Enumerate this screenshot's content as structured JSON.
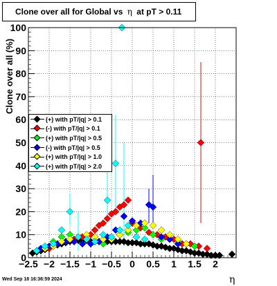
{
  "title_prefix": "Clone  over all for Global vs",
  "title_symbol": "η",
  "title_suffix": "at pT > 0.11",
  "ylabel": "Clone  over all (%)",
  "xlabel": "η",
  "timestamp": "Wed Sep 18 16:36:59 2024",
  "chart_data": {
    "type": "scatter",
    "title": "Clone  over all for Global vs η at pT > 0.11",
    "xlabel": "η",
    "ylabel": "Clone  over all (%)",
    "xlim": [
      -2.5,
      2.5
    ],
    "ylim": [
      0,
      100
    ],
    "grid": true,
    "legend_position": "left-middle",
    "xticks": [
      "-2.5",
      "-2",
      "-1.5",
      "-1",
      "-0.5",
      "0",
      "0.5",
      "1",
      "1.5",
      "2"
    ],
    "yticks": [
      "0",
      "10",
      "20",
      "30",
      "40",
      "50",
      "60",
      "70",
      "80",
      "90",
      "100"
    ],
    "series": [
      {
        "name": "(+) with pT/|q| > 0.1",
        "color": "#000000",
        "points": [
          [
            -2.4,
            2
          ],
          [
            -2.3,
            2.5
          ],
          [
            -2.2,
            3
          ],
          [
            -2.1,
            3.5
          ],
          [
            -2.0,
            4
          ],
          [
            -1.9,
            5
          ],
          [
            -1.8,
            5.5
          ],
          [
            -1.7,
            6
          ],
          [
            -1.6,
            6.5
          ],
          [
            -1.5,
            7
          ],
          [
            -1.4,
            7
          ],
          [
            -1.3,
            7.5
          ],
          [
            -1.2,
            7.5
          ],
          [
            -1.1,
            7.5
          ],
          [
            -1.0,
            7
          ],
          [
            -0.9,
            7
          ],
          [
            -0.8,
            7
          ],
          [
            -0.7,
            7
          ],
          [
            -0.6,
            7
          ],
          [
            -0.5,
            7
          ],
          [
            -0.4,
            7
          ],
          [
            -0.3,
            7
          ],
          [
            -0.2,
            7
          ],
          [
            -0.1,
            6.5
          ],
          [
            0.0,
            6.5
          ],
          [
            0.1,
            6.5
          ],
          [
            0.2,
            6
          ],
          [
            0.3,
            6
          ],
          [
            0.4,
            6
          ],
          [
            0.5,
            5.5
          ],
          [
            0.6,
            5
          ],
          [
            0.7,
            5
          ],
          [
            0.8,
            4.5
          ],
          [
            0.9,
            4
          ],
          [
            1.0,
            4
          ],
          [
            1.1,
            3.5
          ],
          [
            1.2,
            3
          ],
          [
            1.3,
            3
          ],
          [
            1.4,
            2.5
          ],
          [
            1.5,
            2
          ],
          [
            1.6,
            2
          ],
          [
            1.7,
            1.5
          ],
          [
            1.8,
            1.5
          ],
          [
            1.9,
            1
          ],
          [
            2.0,
            1
          ],
          [
            2.1,
            1
          ],
          [
            2.4,
            1.5
          ]
        ]
      },
      {
        "name": "(-) with pT/|q| > 0.1",
        "color": "#ff0000",
        "points": [
          [
            -2.0,
            4
          ],
          [
            -1.8,
            6
          ],
          [
            -1.6,
            7
          ],
          [
            -1.4,
            8
          ],
          [
            -1.2,
            9
          ],
          [
            -1.0,
            10
          ],
          [
            -0.9,
            12
          ],
          [
            -0.8,
            14
          ],
          [
            -0.7,
            15
          ],
          [
            -0.6,
            17
          ],
          [
            -0.5,
            19
          ],
          [
            -0.4,
            20
          ],
          [
            -0.3,
            22
          ],
          [
            -0.2,
            23
          ],
          [
            -0.1,
            25
          ],
          [
            0.0,
            15
          ],
          [
            0.2,
            13
          ],
          [
            0.4,
            11
          ],
          [
            0.6,
            10
          ],
          [
            0.8,
            9
          ],
          [
            1.0,
            8
          ],
          [
            1.2,
            6
          ],
          [
            1.4,
            6
          ],
          [
            1.6,
            5
          ],
          [
            1.8,
            4
          ],
          [
            1.65,
            50
          ]
        ],
        "error_bars": [
          [
            1.65,
            15,
            85
          ]
        ]
      },
      {
        "name": "(+) with pT/|q| > 0.5",
        "color": "#00ff00",
        "points": [
          [
            -1.9,
            7
          ],
          [
            -1.7,
            9
          ],
          [
            -1.5,
            10
          ],
          [
            -1.3,
            9
          ],
          [
            -1.1,
            8
          ],
          [
            -0.9,
            7
          ],
          [
            -0.7,
            6
          ],
          [
            -0.5,
            8
          ],
          [
            -0.3,
            10
          ],
          [
            -0.1,
            11
          ],
          [
            0.1,
            12
          ],
          [
            0.3,
            13
          ],
          [
            0.5,
            10
          ],
          [
            0.7,
            8
          ],
          [
            0.9,
            8
          ],
          [
            1.1,
            7
          ],
          [
            1.3,
            6
          ],
          [
            1.5,
            5
          ]
        ]
      },
      {
        "name": "(-) with pT/|q| > 0.5",
        "color": "#0000ff",
        "points": [
          [
            -2.2,
            4
          ],
          [
            -2.0,
            5
          ],
          [
            -1.8,
            6
          ],
          [
            -1.6,
            7
          ],
          [
            -1.4,
            7
          ],
          [
            -1.2,
            6
          ],
          [
            -1.0,
            6
          ],
          [
            -0.8,
            7
          ],
          [
            -0.6,
            9
          ],
          [
            -0.4,
            12
          ],
          [
            -0.2,
            18
          ],
          [
            0.0,
            16
          ],
          [
            0.2,
            15
          ],
          [
            0.4,
            23
          ],
          [
            0.5,
            22
          ],
          [
            0.7,
            9
          ],
          [
            0.9,
            8
          ],
          [
            1.1,
            6
          ]
        ],
        "error_bars": [
          [
            -0.2,
            10,
            26
          ],
          [
            0.4,
            15,
            30
          ],
          [
            0.5,
            15,
            36
          ]
        ]
      },
      {
        "name": "(+) with pT/|q| > 1.0",
        "color": "#ffff00",
        "points": [
          [
            -2.3,
            3
          ],
          [
            -2.1,
            4
          ],
          [
            -1.9,
            5
          ],
          [
            -1.7,
            7
          ],
          [
            -1.5,
            8
          ],
          [
            -1.3,
            9
          ],
          [
            -1.1,
            10
          ],
          [
            -0.9,
            9
          ],
          [
            -0.7,
            8
          ],
          [
            -0.5,
            8
          ],
          [
            -0.3,
            10
          ],
          [
            -0.1,
            12
          ],
          [
            0.1,
            14
          ],
          [
            0.3,
            15
          ],
          [
            0.5,
            14
          ],
          [
            0.7,
            12
          ],
          [
            0.9,
            10
          ],
          [
            1.1,
            8
          ],
          [
            1.3,
            6
          ]
        ]
      },
      {
        "name": "(+) with pT/|q| > 2.0",
        "color": "#00ffff",
        "points": [
          [
            -2.3,
            3
          ],
          [
            -2.1,
            5
          ],
          [
            -1.9,
            6
          ],
          [
            -1.7,
            12
          ],
          [
            -1.5,
            20
          ],
          [
            -1.3,
            9
          ],
          [
            -1.1,
            8
          ],
          [
            -0.9,
            7
          ],
          [
            -0.7,
            10
          ],
          [
            -0.6,
            25
          ],
          [
            -0.5,
            9
          ],
          [
            -0.4,
            41
          ],
          [
            -0.3,
            12
          ],
          [
            -0.25,
            100
          ],
          [
            -0.1,
            14
          ],
          [
            0.1,
            9
          ],
          [
            0.3,
            8
          ]
        ],
        "error_bars": [
          [
            -1.5,
            14,
            28
          ],
          [
            -0.6,
            15,
            40
          ],
          [
            -0.4,
            20,
            62
          ],
          [
            -0.2,
            5,
            50
          ],
          [
            -1.3,
            3,
            20
          ]
        ]
      }
    ]
  }
}
